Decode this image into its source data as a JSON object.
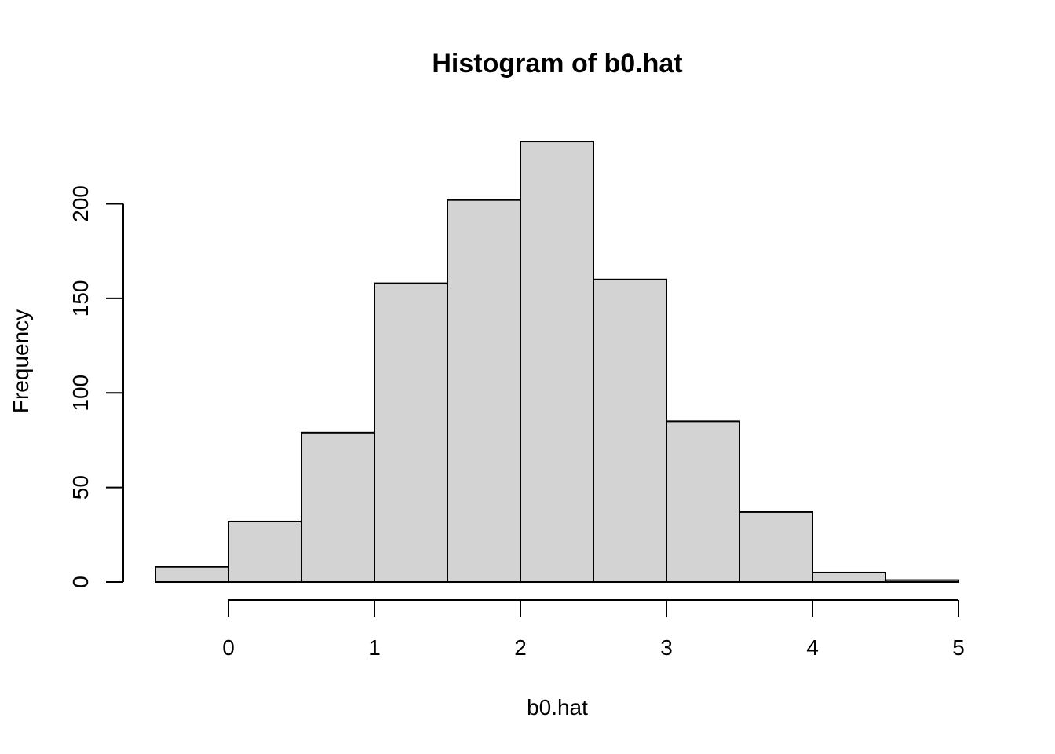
{
  "chart_data": {
    "type": "bar",
    "title": "Histogram of b0.hat",
    "xlabel": "b0.hat",
    "ylabel": "Frequency",
    "bins": [
      {
        "start": -0.5,
        "end": 0.0,
        "count": 8
      },
      {
        "start": 0.0,
        "end": 0.5,
        "count": 32
      },
      {
        "start": 0.5,
        "end": 1.0,
        "count": 79
      },
      {
        "start": 1.0,
        "end": 1.5,
        "count": 158
      },
      {
        "start": 1.5,
        "end": 2.0,
        "count": 202
      },
      {
        "start": 2.0,
        "end": 2.5,
        "count": 233
      },
      {
        "start": 2.5,
        "end": 3.0,
        "count": 160
      },
      {
        "start": 3.0,
        "end": 3.5,
        "count": 85
      },
      {
        "start": 3.5,
        "end": 4.0,
        "count": 37
      },
      {
        "start": 4.0,
        "end": 4.5,
        "count": 5
      },
      {
        "start": 4.5,
        "end": 5.0,
        "count": 1
      }
    ],
    "xlim": [
      -0.5,
      5.0
    ],
    "ylim": [
      0,
      233
    ],
    "x_ticks": [
      0,
      1,
      2,
      3,
      4,
      5
    ],
    "x_tick_labels": [
      "0",
      "1",
      "2",
      "3",
      "4",
      "5"
    ],
    "y_ticks": [
      0,
      50,
      100,
      150,
      200
    ],
    "y_tick_labels": [
      "0",
      "50",
      "100",
      "150",
      "200"
    ],
    "colors": {
      "bar_fill": "#d3d3d3",
      "bar_stroke": "#000000"
    },
    "grid": false
  }
}
